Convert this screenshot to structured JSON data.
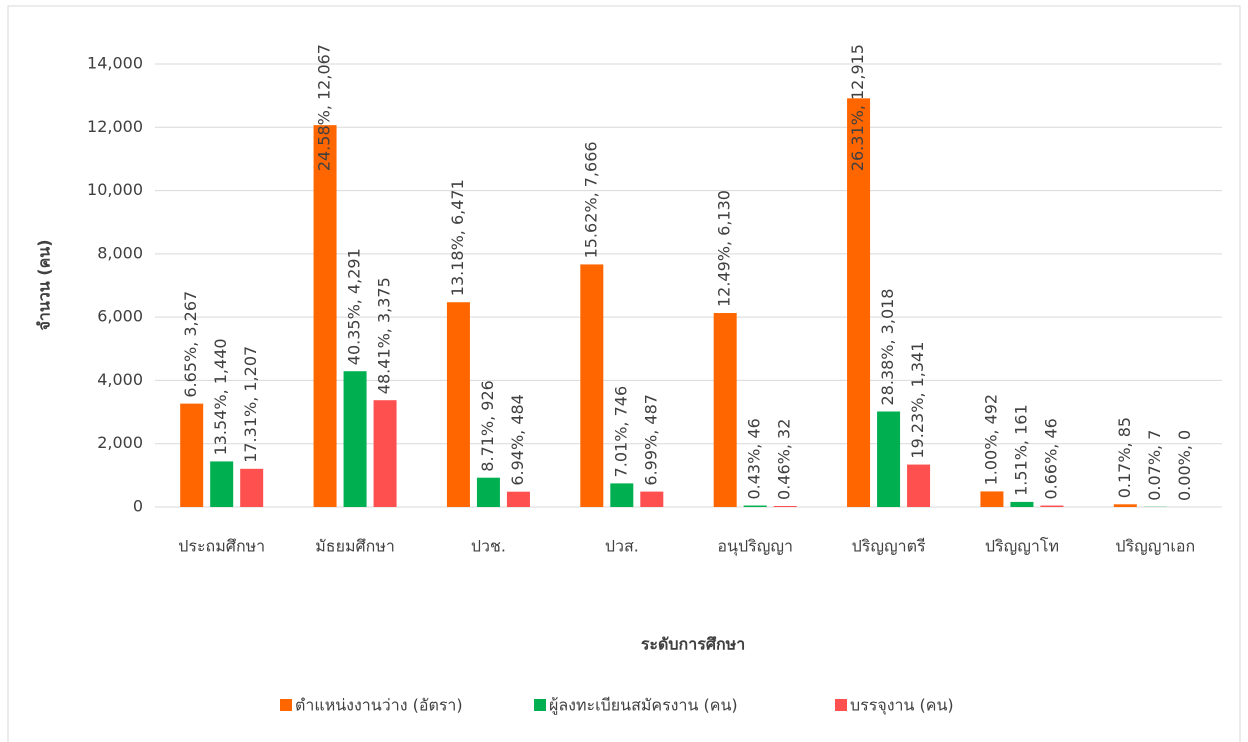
{
  "chart_data": {
    "type": "bar",
    "categories": [
      "ประถมศึกษา",
      "มัธยมศึกษา",
      "ปวช.",
      "ปวส.",
      "อนุปริญญา",
      "ปริญญาตรี",
      "ปริญญาโท",
      "ปริญญาเอก"
    ],
    "series": [
      {
        "name": "ตำแหน่งงานว่าง (อัตรา)",
        "color": "#ff6600",
        "values": [
          3267,
          12067,
          6471,
          7666,
          6130,
          12915,
          492,
          85
        ],
        "value_labels": [
          "6.65%, 3,267",
          "24.58%, 12,067",
          "13.18%, 6,471",
          "15.62%, 7,666",
          "12.49%, 6,130",
          "26.31%, 12,915",
          "1.00%, 492",
          "0.17%, 85"
        ]
      },
      {
        "name": "ผู้ลงทะเบียนสมัครงาน (คน)",
        "color": "#00b050",
        "values": [
          1440,
          4291,
          926,
          746,
          46,
          3018,
          161,
          7
        ],
        "value_labels": [
          "13.54%, 1,440",
          "40.35%, 4,291",
          "8.71%, 926",
          "7.01%, 746",
          "0.43%, 46",
          "28.38%, 3,018",
          "1.51%, 161",
          "0.07%, 7"
        ]
      },
      {
        "name": "บรรจุงาน (คน)",
        "color": "#ff5050",
        "values": [
          1207,
          3375,
          484,
          487,
          32,
          1341,
          46,
          0
        ],
        "value_labels": [
          "17.31%, 1,207",
          "48.41%, 3,375",
          "6.94%, 484",
          "6.99%, 487",
          "0.46%, 32",
          "19.23%, 1,341",
          "0.66%, 46",
          "0.00%, 0"
        ]
      }
    ],
    "x_label": "ระดับการศึกษา",
    "y_label": "จำนวน (คน)",
    "ylim": [
      0,
      14000
    ],
    "yticks": [
      0,
      {
        "value": 2000,
        "label": "2,000"
      },
      {
        "value": 4000,
        "label": "4,000"
      },
      {
        "value": 6000,
        "label": "6,000"
      },
      {
        "value": 8000,
        "label": "8,000"
      },
      {
        "value": 10000,
        "label": "10,000"
      },
      {
        "value": 12000,
        "label": "12,000"
      },
      {
        "value": 14000,
        "label": "14,000"
      }
    ],
    "grid": true,
    "legend": "bottom"
  }
}
